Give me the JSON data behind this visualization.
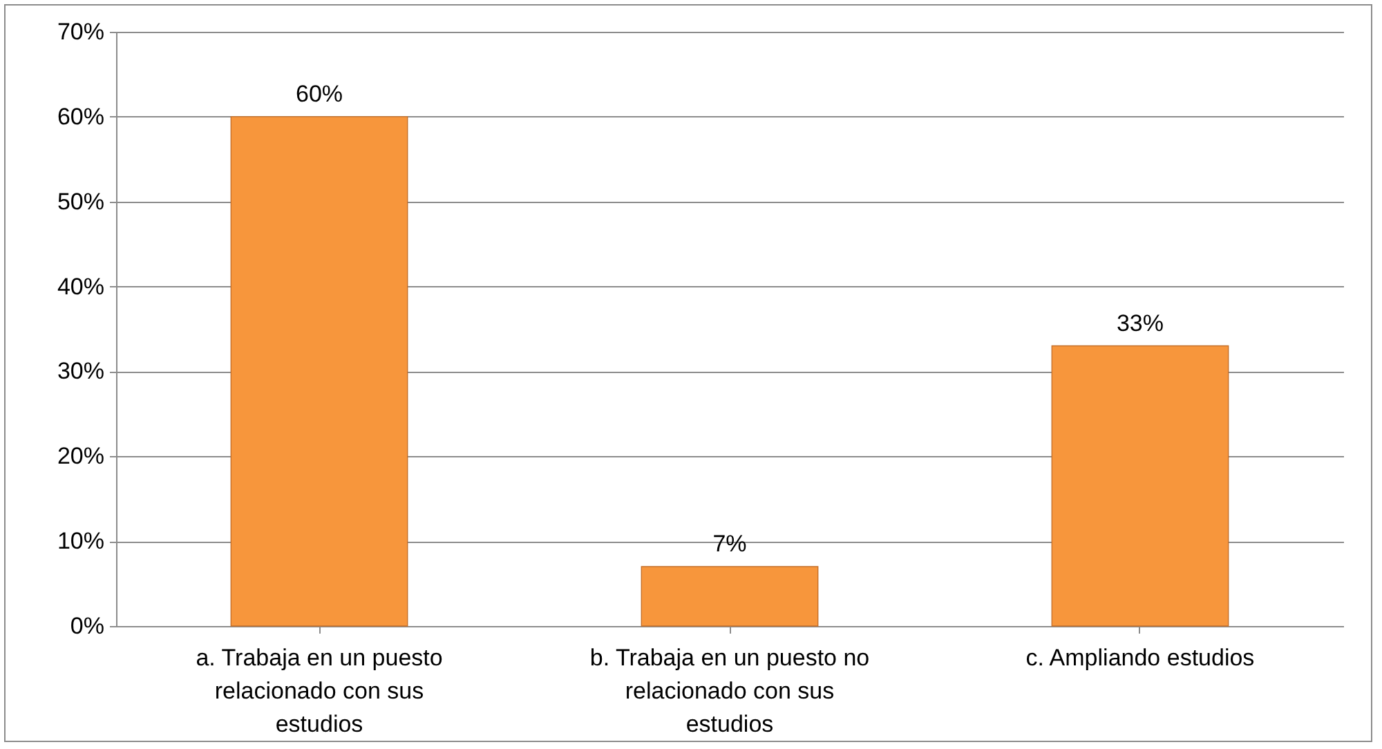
{
  "chart_data": {
    "type": "bar",
    "categories": [
      "a. Trabaja en un puesto relacionado con sus estudios",
      "b. Trabaja en un puesto no relacionado con sus estudios",
      "c. Ampliando estudios"
    ],
    "values": [
      60,
      7,
      33
    ],
    "value_labels": [
      "60%",
      "7%",
      "33%"
    ],
    "color": "#f7963c",
    "ylim": [
      0,
      70
    ],
    "yticks": [
      {
        "value": 0,
        "label": "0%"
      },
      {
        "value": 10,
        "label": "10%"
      },
      {
        "value": 20,
        "label": "20%"
      },
      {
        "value": 30,
        "label": "30%"
      },
      {
        "value": 40,
        "label": "40%"
      },
      {
        "value": 50,
        "label": "50%"
      },
      {
        "value": 60,
        "label": "60%"
      },
      {
        "value": 70,
        "label": "70%"
      }
    ],
    "grid": "y"
  }
}
